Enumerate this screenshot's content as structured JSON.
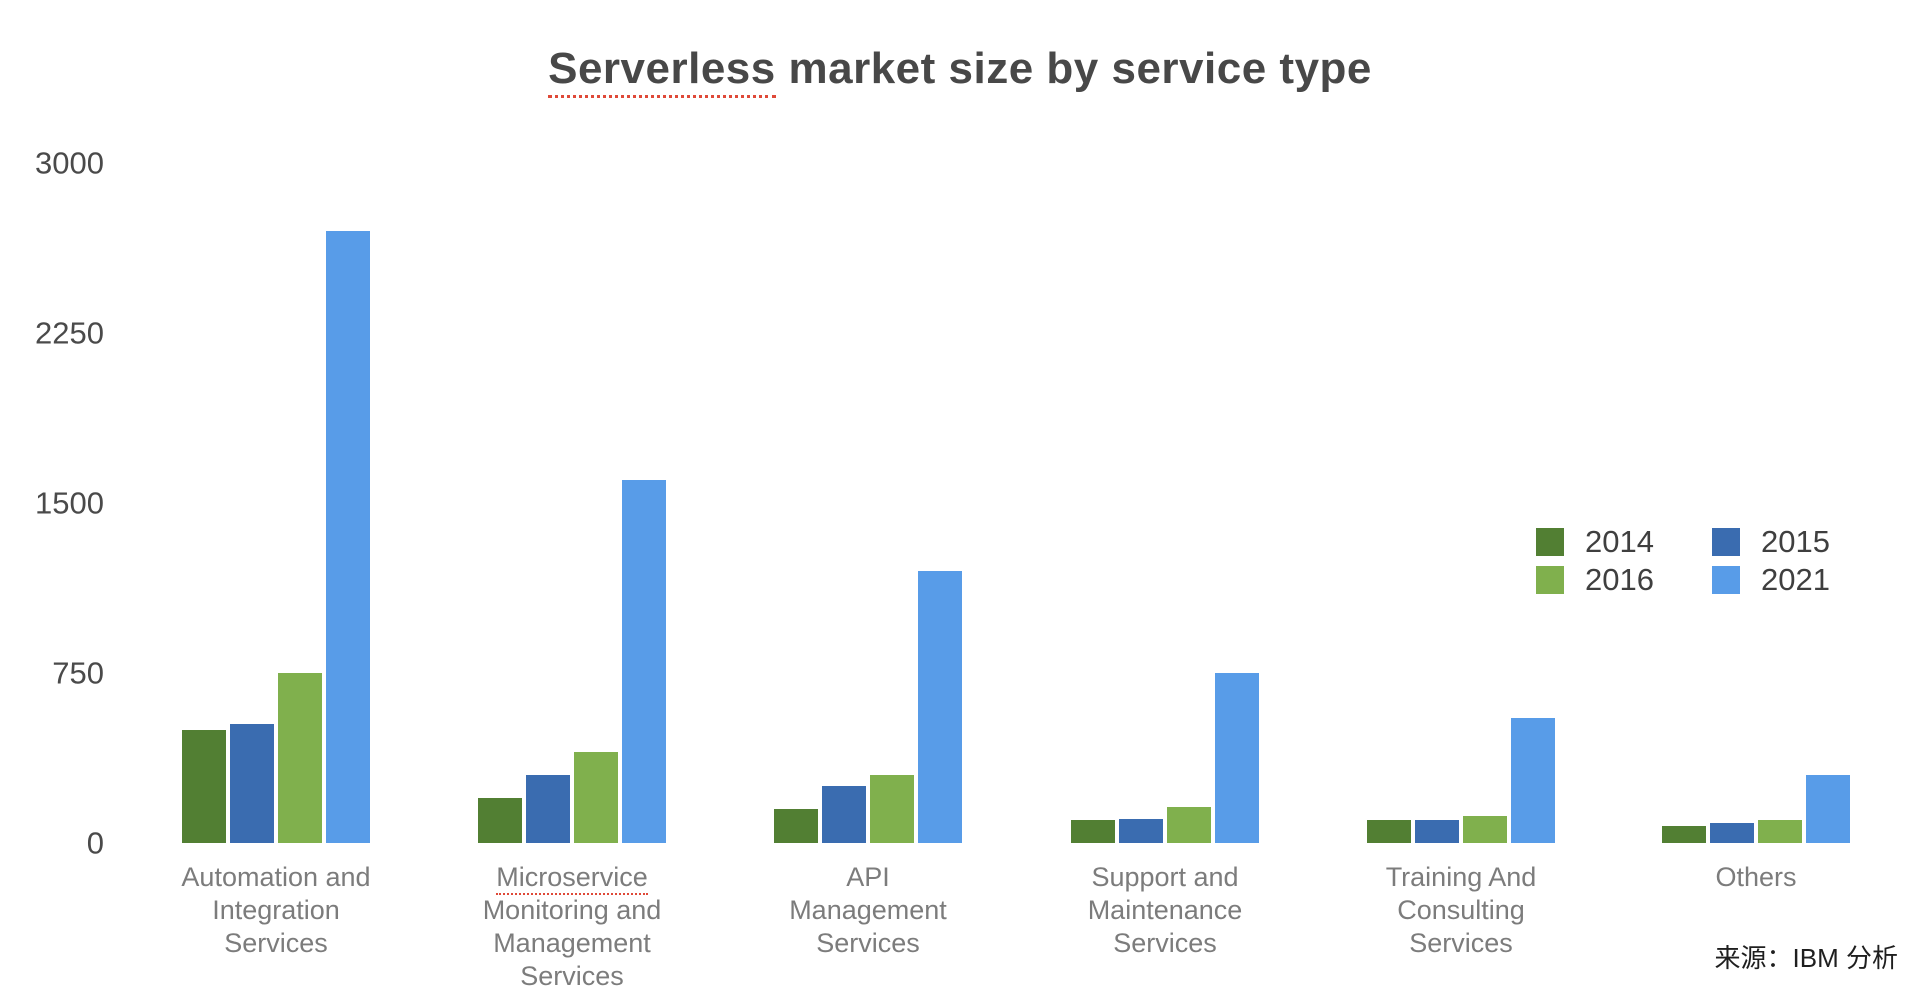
{
  "title": {
    "full": "Serverless market size by service type",
    "misspelled_word": "Serverless",
    "rest": " market size by service type"
  },
  "source_note": "来源：IBM 分析",
  "chart_data": {
    "type": "bar",
    "title": "Serverless market size by service type",
    "categories": [
      "Automation and Integration Services",
      "Microservice Monitoring and Management Services",
      "API Management Services",
      "Support and Maintenance Services",
      "Training And Consulting Services",
      "Others"
    ],
    "series": [
      {
        "name": "2014",
        "color": "#527f33",
        "values": [
          500,
          200,
          150,
          100,
          100,
          75
        ]
      },
      {
        "name": "2015",
        "color": "#3a6cb0",
        "values": [
          525,
          300,
          250,
          105,
          100,
          90
        ]
      },
      {
        "name": "2016",
        "color": "#80b04d",
        "values": [
          750,
          400,
          300,
          160,
          120,
          100
        ]
      },
      {
        "name": "2021",
        "color": "#589ce8",
        "values": [
          2700,
          1600,
          1200,
          750,
          550,
          300
        ]
      }
    ],
    "ylim": [
      0,
      3000
    ],
    "yticks": [
      0,
      750,
      1500,
      2250,
      3000
    ],
    "xlabel": "",
    "ylabel": "",
    "grid": false,
    "legend_position": "middle-right"
  },
  "category_labels": [
    {
      "lines": [
        "Automation and",
        "Integration",
        "Services"
      ],
      "squiggle_line": null
    },
    {
      "lines": [
        "Microservice",
        "Monitoring and",
        "Management",
        "Services"
      ],
      "squiggle_line": 0
    },
    {
      "lines": [
        "API",
        "Management",
        "Services"
      ],
      "squiggle_line": null
    },
    {
      "lines": [
        "Support and",
        "Maintenance",
        "Services"
      ],
      "squiggle_line": null
    },
    {
      "lines": [
        "Training And",
        "Consulting",
        "Services"
      ],
      "squiggle_line": null
    },
    {
      "lines": [
        "Others"
      ],
      "squiggle_line": null
    }
  ]
}
